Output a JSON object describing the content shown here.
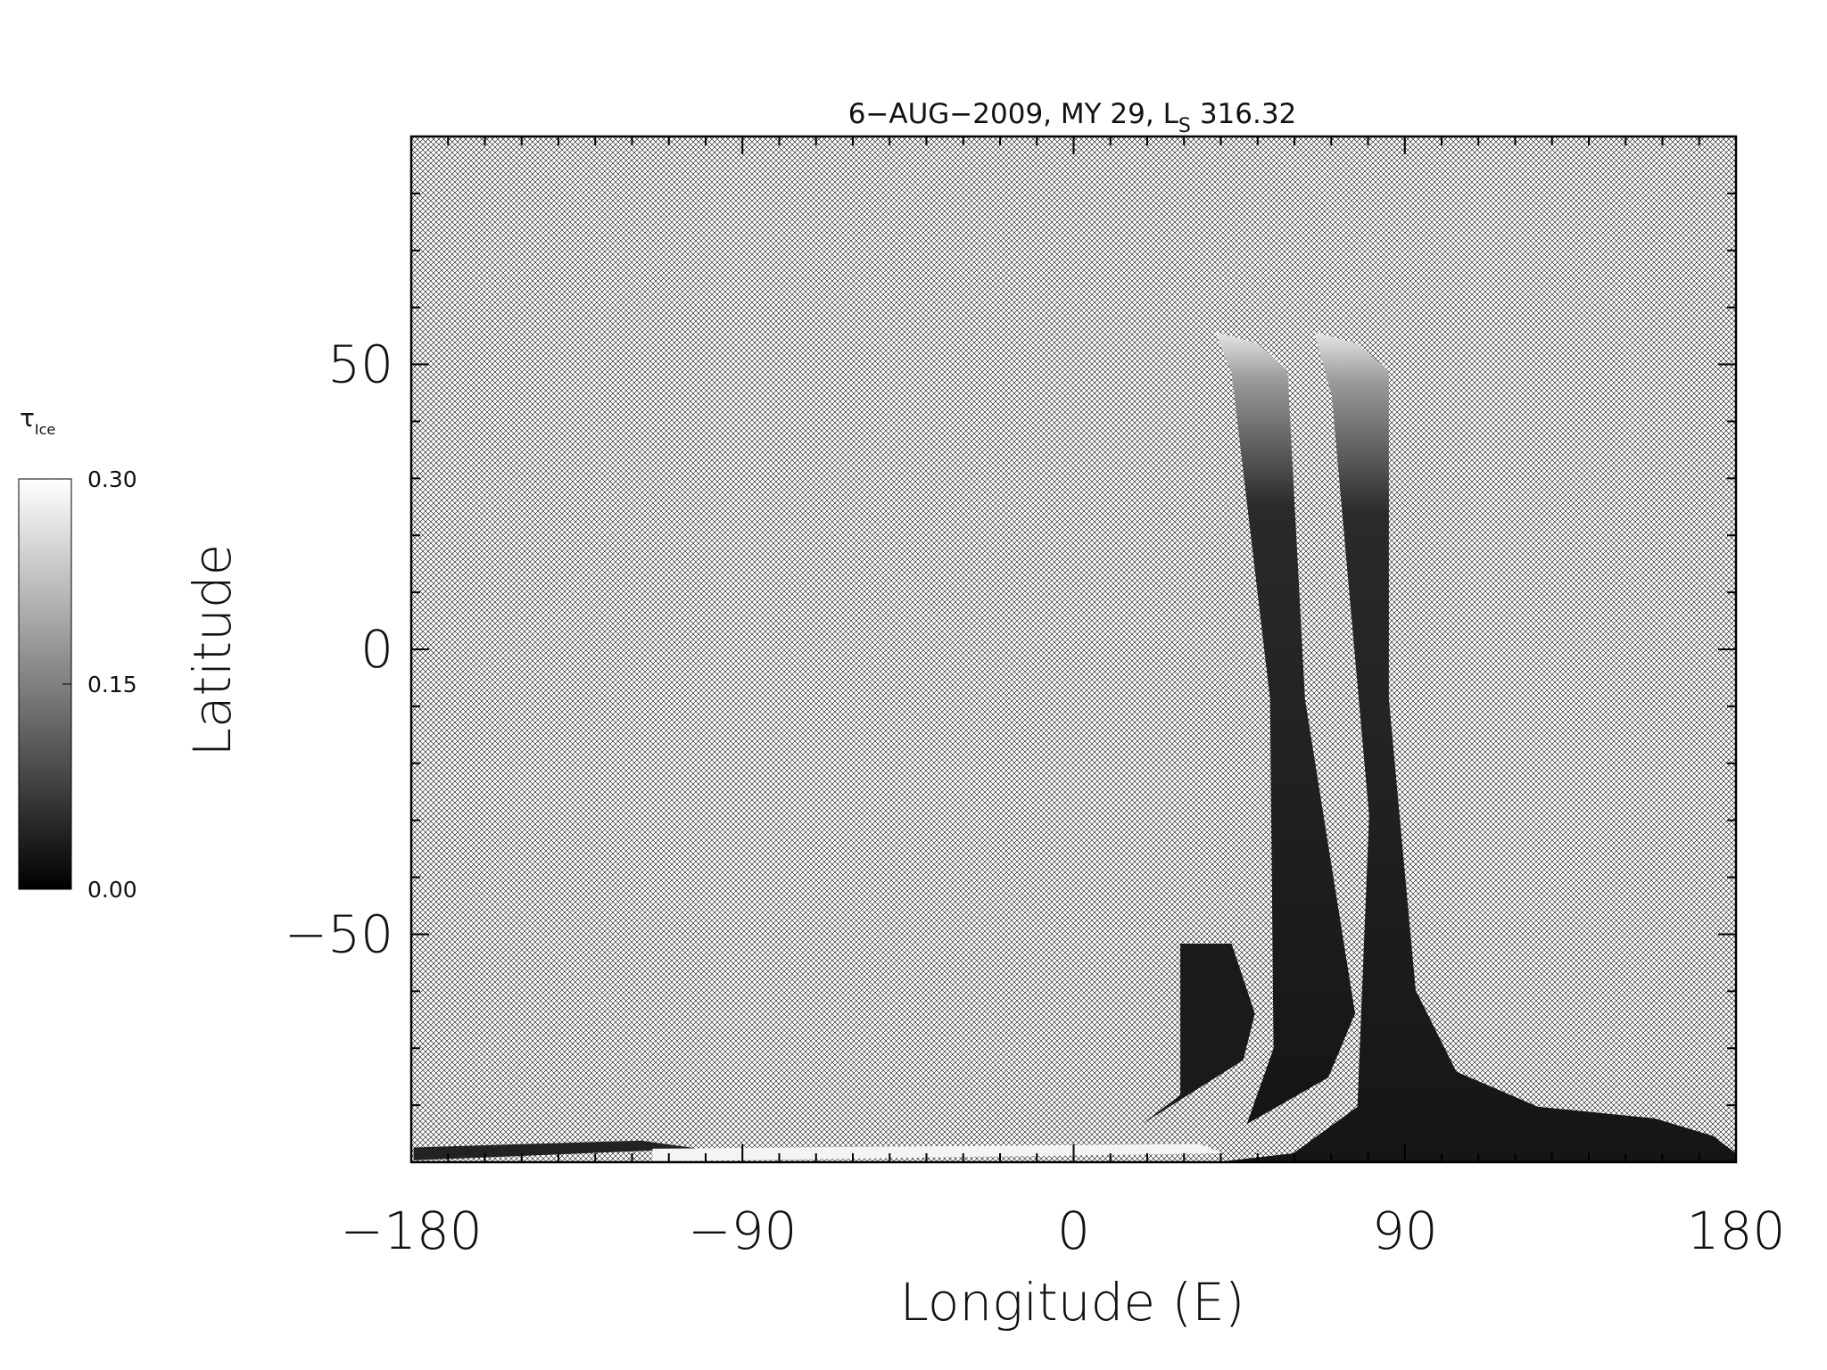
{
  "chart_data": {
    "type": "map",
    "title": "6−AUG−2009, MY 29,  L",
    "title_subscript": "S",
    "title_suffix": "316.32",
    "xlabel": "Longitude (E)",
    "ylabel": "Latitude",
    "xlim": [
      -180,
      180
    ],
    "ylim": [
      -90,
      90
    ],
    "xticks": [
      {
        "value": -180,
        "label": "−180"
      },
      {
        "value": -90,
        "label": "−90"
      },
      0,
      90,
      180
    ],
    "yticks": [
      {
        "value": -50,
        "label": "−50"
      },
      0,
      50
    ],
    "xminorticks": [
      -170,
      -160,
      -150,
      -140,
      -130,
      -120,
      -110,
      -100,
      -80,
      -70,
      -60,
      -50,
      -40,
      -30,
      -20,
      -10,
      10,
      20,
      30,
      40,
      50,
      60,
      70,
      80,
      100,
      110,
      120,
      130,
      140,
      150,
      160,
      170
    ],
    "yminorticks": [
      -80,
      -70,
      -60,
      -40,
      -30,
      -20,
      -10,
      10,
      20,
      30,
      40,
      60,
      70,
      80
    ],
    "colorbar": {
      "label": "τ",
      "label_subscript": "Ice",
      "clim": [
        0,
        0.3
      ],
      "ticks": [
        {
          "value": 0,
          "label": "0.00"
        },
        {
          "value": 0.15,
          "label": "0.15"
        },
        {
          "value": 0.3,
          "label": "0.30"
        }
      ]
    }
  }
}
